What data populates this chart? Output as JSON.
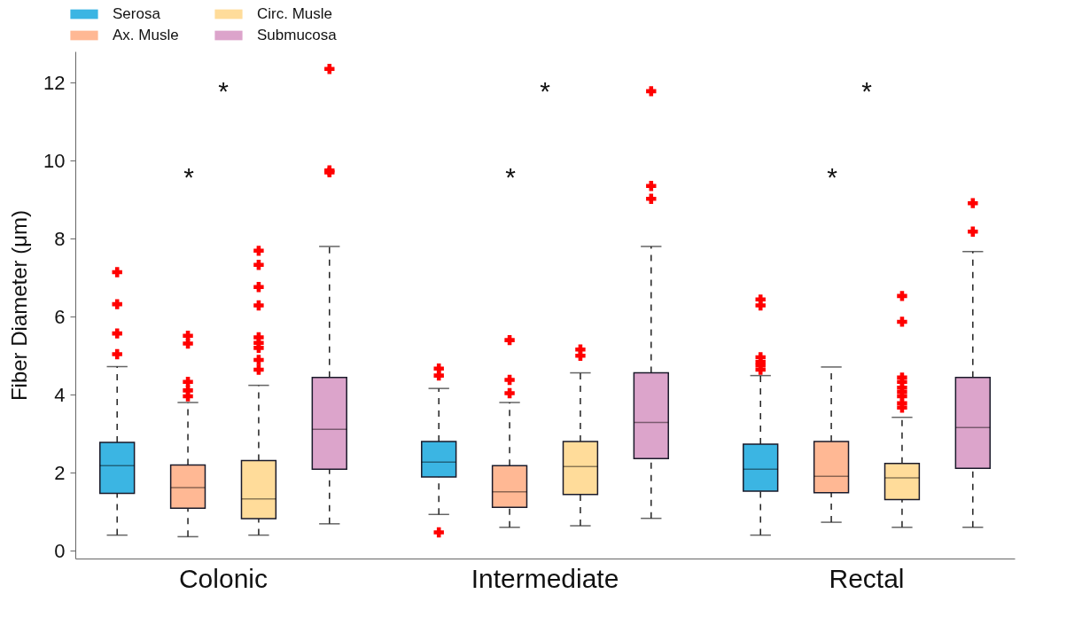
{
  "chart_data": {
    "type": "box",
    "ylabel": "Fiber Diameter (μm)",
    "categories": [
      "Colonic",
      "Intermediate",
      "Rectal"
    ],
    "ylim": [
      -0.2,
      12.8
    ],
    "yticks": [
      0,
      2,
      4,
      6,
      8,
      10,
      12
    ],
    "grid": false,
    "legend": "top left",
    "series": [
      {
        "name": "Serosa",
        "color": "#3bb5e3",
        "boxes": [
          {
            "low": 0.4,
            "q1": 1.47,
            "median": 2.18,
            "q3": 2.78,
            "high": 4.72,
            "outliers": [
              5.04,
              5.57,
              6.32,
              7.14
            ]
          },
          {
            "low": 0.93,
            "q1": 1.89,
            "median": 2.27,
            "q3": 2.8,
            "high": 4.16,
            "outliers": [
              0.47,
              4.49,
              4.67
            ]
          },
          {
            "low": 0.4,
            "q1": 1.53,
            "median": 2.09,
            "q3": 2.73,
            "high": 4.49,
            "outliers": [
              4.64,
              4.75,
              4.84,
              4.96,
              6.29,
              6.44
            ]
          }
        ]
      },
      {
        "name": "Ax. Musle",
        "color": "#ffb894",
        "boxes": [
          {
            "low": 0.36,
            "q1": 1.09,
            "median": 1.62,
            "q3": 2.2,
            "high": 3.8,
            "outliers": [
              3.96,
              4.11,
              4.33,
              5.31,
              5.51
            ]
          },
          {
            "low": 0.6,
            "q1": 1.11,
            "median": 1.51,
            "q3": 2.18,
            "high": 3.8,
            "outliers": [
              4.04,
              4.38,
              5.4
            ]
          },
          {
            "low": 0.73,
            "q1": 1.49,
            "median": 1.91,
            "q3": 2.8,
            "high": 4.71
          }
        ]
      },
      {
        "name": "Circ. Musle",
        "color": "#ffdc9a",
        "boxes": [
          {
            "low": 0.4,
            "q1": 0.82,
            "median": 1.33,
            "q3": 2.31,
            "high": 4.24,
            "outliers": [
              4.64,
              4.89,
              5.2,
              5.33,
              5.47,
              6.29,
              6.76,
              7.33,
              7.69
            ]
          },
          {
            "low": 0.64,
            "q1": 1.44,
            "median": 2.16,
            "q3": 2.8,
            "high": 4.56,
            "outliers": [
              5.0,
              5.16
            ]
          },
          {
            "low": 0.6,
            "q1": 1.31,
            "median": 1.87,
            "q3": 2.24,
            "high": 3.42,
            "outliers": [
              3.67,
              3.78,
              3.96,
              4.07,
              4.18,
              4.33,
              4.44,
              5.87,
              6.53
            ]
          }
        ]
      },
      {
        "name": "Submucosa",
        "color": "#dca4cb",
        "boxes": [
          {
            "low": 0.69,
            "q1": 2.09,
            "median": 3.11,
            "q3": 4.44,
            "high": 7.8,
            "outliers": [
              9.7,
              9.75,
              12.35
            ]
          },
          {
            "low": 0.83,
            "q1": 2.36,
            "median": 3.29,
            "q3": 4.56,
            "high": 7.8,
            "outliers": [
              9.02,
              9.35,
              11.78
            ]
          },
          {
            "low": 0.6,
            "q1": 2.11,
            "median": 3.16,
            "q3": 4.44,
            "high": 7.67,
            "outliers": [
              8.18,
              8.91
            ]
          }
        ]
      }
    ],
    "annotations": [
      "*",
      "*",
      "*",
      "*",
      "*",
      "*"
    ]
  }
}
